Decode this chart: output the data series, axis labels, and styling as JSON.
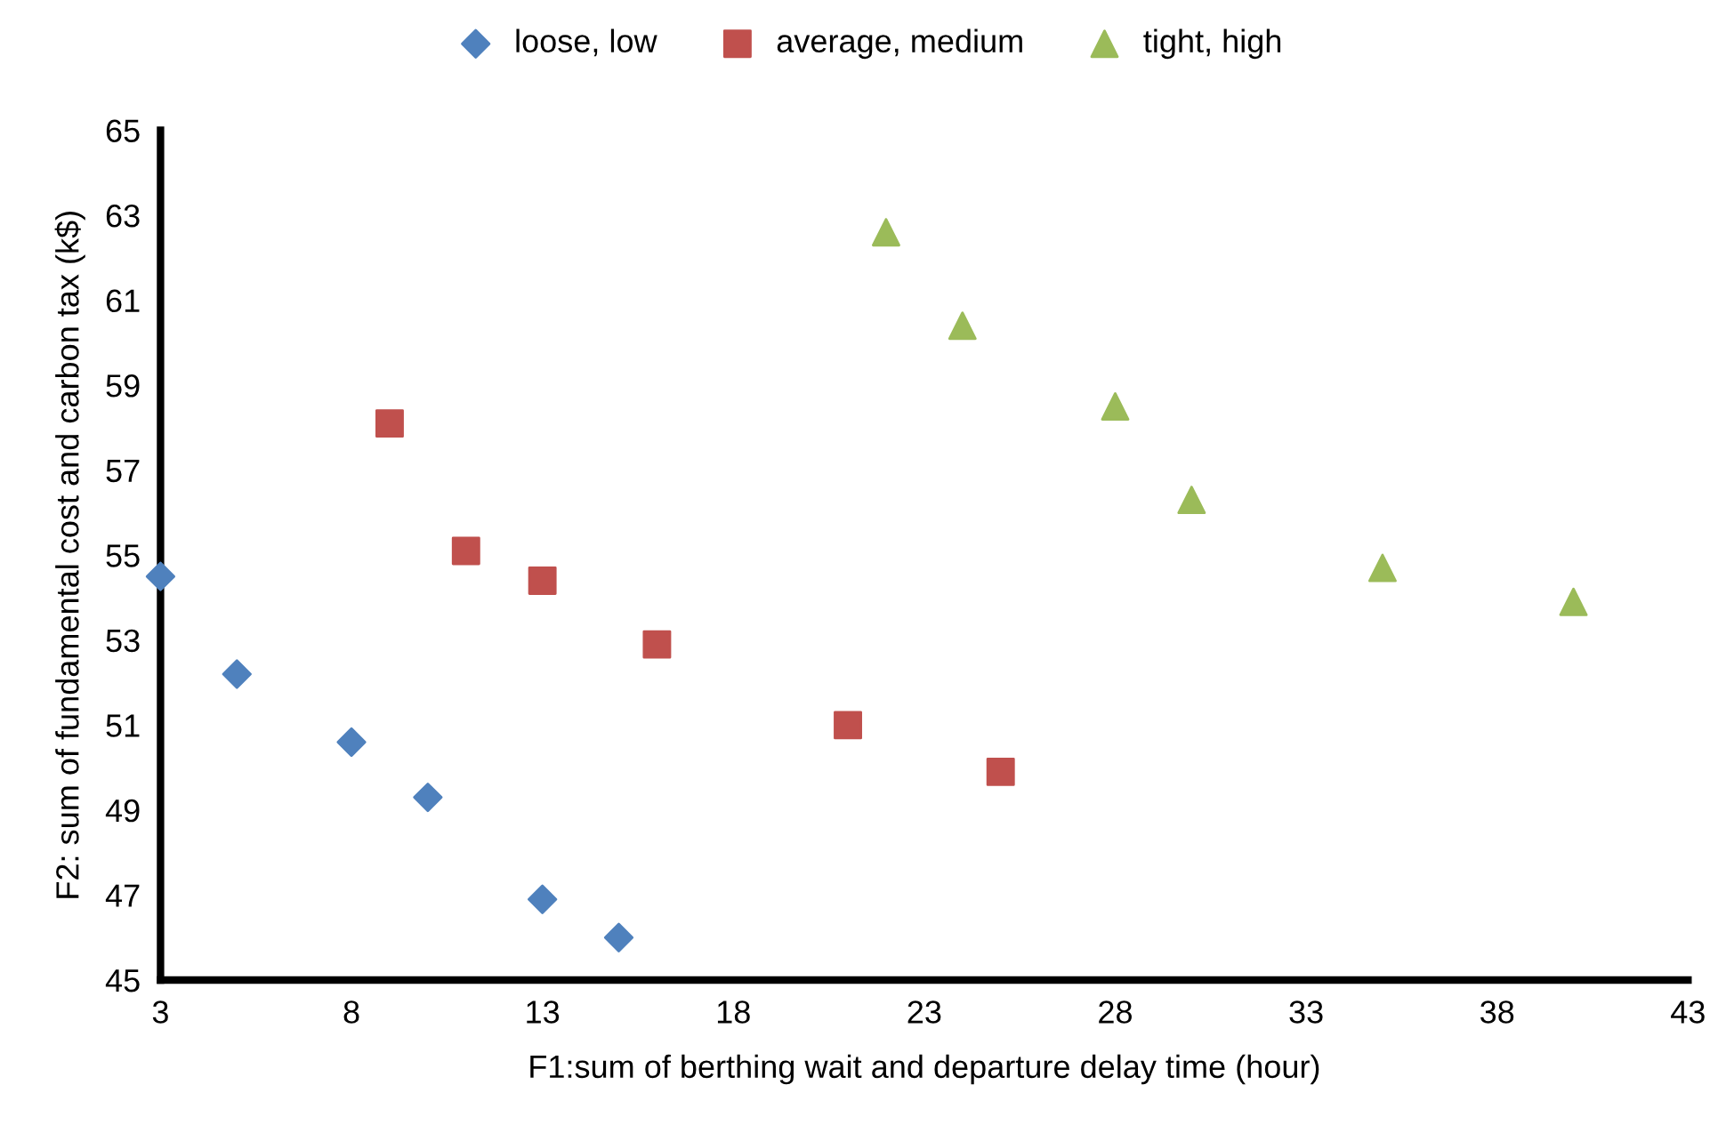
{
  "chart_data": {
    "type": "scatter",
    "xlabel": "F1:sum of berthing wait and departure delay time (hour)",
    "ylabel": "F2: sum of fundamental cost and carbon tax (k$)",
    "xlim": [
      3,
      43
    ],
    "xticks": [
      3,
      8,
      13,
      18,
      23,
      28,
      33,
      38,
      43
    ],
    "ylim": [
      45,
      65
    ],
    "yticks": [
      45,
      47,
      49,
      51,
      53,
      55,
      57,
      59,
      61,
      63,
      65
    ],
    "grid": false,
    "legend": "top",
    "series": [
      {
        "name": "loose, low",
        "color": "#4f81bd",
        "marker": "diamond",
        "x": [
          3,
          5,
          8,
          10,
          13,
          15
        ],
        "values": [
          54.5,
          52.2,
          50.6,
          49.3,
          46.9,
          46.0
        ]
      },
      {
        "name": "average, medium",
        "color": "#c0504d",
        "marker": "square",
        "x": [
          9,
          11,
          13,
          16,
          21,
          25
        ],
        "values": [
          58.1,
          55.1,
          54.4,
          52.9,
          51.0,
          49.9
        ]
      },
      {
        "name": "tight, high",
        "color": "#9bbb59",
        "marker": "triangle",
        "x": [
          22,
          24,
          28,
          30,
          35,
          40
        ],
        "values": [
          62.6,
          60.4,
          58.5,
          56.3,
          54.7,
          53.9
        ]
      }
    ]
  }
}
